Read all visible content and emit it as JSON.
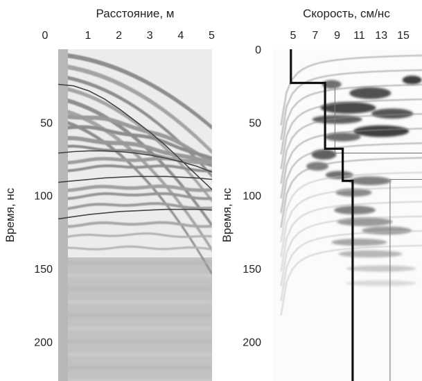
{
  "chart_data": [
    {
      "type": "heatmap",
      "panel": "radargram",
      "xlabel": "Расстояние, м",
      "ylabel": "Время, нс",
      "x_ticks": [
        0,
        1,
        2,
        3,
        4,
        5
      ],
      "y_ticks": [
        50,
        100,
        150,
        200
      ],
      "xlim": [
        0,
        5
      ],
      "ylim": [
        0,
        228
      ],
      "x_axis_position": "top",
      "colormap": "grayscale",
      "overlay_curves": [
        {
          "x": [
            0,
            0.5,
            1,
            1.5,
            2,
            2.5,
            3,
            3.5,
            4,
            4.5,
            5
          ],
          "y": [
            24,
            25,
            28.5,
            34,
            41,
            49,
            57,
            66,
            76,
            86,
            96
          ]
        },
        {
          "x": [
            0,
            0.5,
            1,
            1.5,
            2,
            2.5,
            3,
            3.5,
            4,
            4.5,
            5
          ],
          "y": [
            71,
            70,
            69.5,
            69.5,
            70,
            71,
            72.5,
            74.5,
            77,
            80,
            84
          ]
        },
        {
          "x": [
            0,
            0.5,
            1,
            1.5,
            2,
            2.5,
            3,
            3.5,
            4,
            4.5,
            5
          ],
          "y": [
            91,
            90,
            89,
            88,
            87.5,
            87,
            87,
            87,
            87.5,
            88,
            89
          ]
        },
        {
          "x": [
            0,
            0.5,
            1,
            1.5,
            2,
            2.5,
            3,
            3.5,
            4,
            4.5,
            5
          ],
          "y": [
            116,
            114.5,
            113,
            112,
            111,
            110.5,
            110,
            109.5,
            109.5,
            109.5,
            110
          ]
        }
      ]
    },
    {
      "type": "heatmap",
      "panel": "velocity-spectrum",
      "xlabel": "Скорость, см/нс",
      "ylabel": "Время, нс",
      "x_ticks": [
        5,
        7,
        9,
        11,
        13,
        15
      ],
      "y_ticks": [
        0,
        50,
        100,
        150,
        200
      ],
      "xlim": [
        3.9,
        17.1
      ],
      "ylim": [
        0,
        228
      ],
      "x_axis_position": "top",
      "colormap": "grayscale",
      "velocity_profile": {
        "velocity": [
          4.8,
          4.8,
          7.9,
          7.9,
          9.5,
          9.5,
          10.4,
          10.4
        ],
        "time": [
          0,
          23,
          23,
          68,
          68,
          90,
          90,
          228
        ]
      },
      "reference_lines": [
        {
          "velocity": [
            8.8,
            8.8,
            17.1
          ],
          "time": [
            23,
            71,
            71
          ]
        },
        {
          "velocity": [
            13.8,
            13.8,
            17.1
          ],
          "time": [
            228,
            89,
            89
          ]
        }
      ]
    }
  ]
}
